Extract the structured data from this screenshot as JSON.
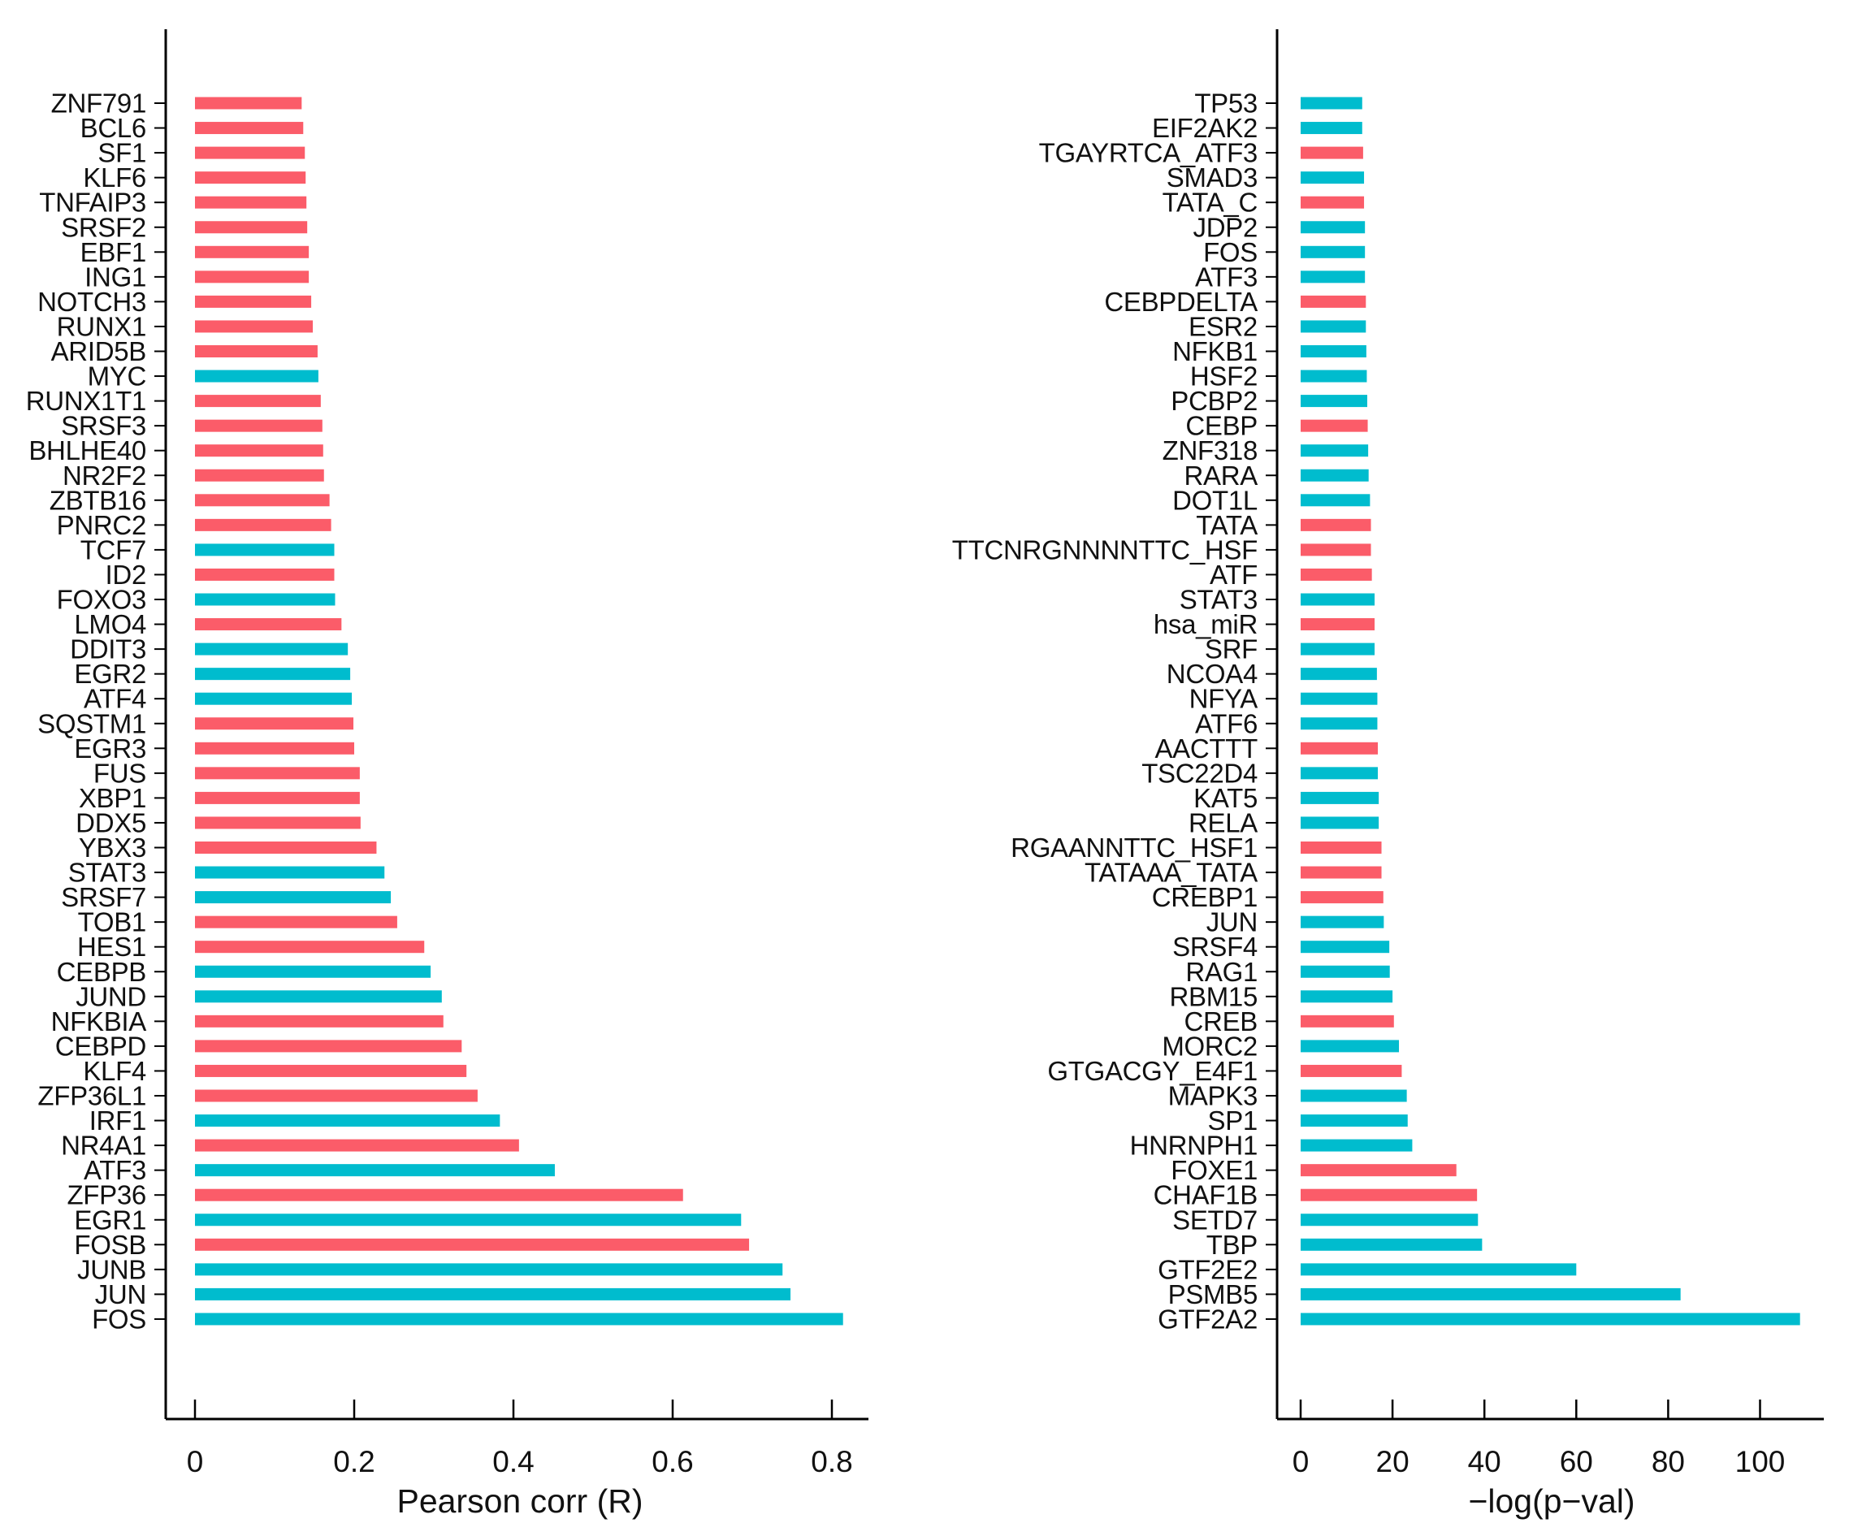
{
  "figure": {
    "background": "#ffffff",
    "bar_color_up": "#00BCCE",
    "bar_color_down": "#FB5C69",
    "axis_color": "#000000"
  },
  "chart_data": [
    {
      "type": "bar",
      "orientation": "horizontal",
      "title": "",
      "xlabel": "Pearson corr (R)",
      "ylabel": "",
      "xlim": [
        -0.04,
        0.85
      ],
      "grid": false,
      "legend_position": "none",
      "xticks": [
        0,
        0.2,
        0.4,
        0.6,
        0.8
      ],
      "xtick_labels": [
        "0",
        "0.2",
        "0.4",
        "0.6",
        "0.8"
      ],
      "categories": [
        "ZNF791",
        "BCL6",
        "SF1",
        "KLF6",
        "TNFAIP3",
        "SRSF2",
        "EBF1",
        "ING1",
        "NOTCH3",
        "RUNX1",
        "ARID5B",
        "MYC",
        "RUNX1T1",
        "SRSF3",
        "BHLHE40",
        "NR2F2",
        "ZBTB16",
        "PNRC2",
        "TCF7",
        "ID2",
        "FOXO3",
        "LMO4",
        "DDIT3",
        "EGR2",
        "ATF4",
        "SQSTM1",
        "EGR3",
        "FUS",
        "XBP1",
        "DDX5",
        "YBX3",
        "STAT3",
        "SRSF7",
        "TOB1",
        "HES1",
        "CEBPB",
        "JUND",
        "NFKBIA",
        "CEBPD",
        "KLF4",
        "ZFP36L1",
        "IRF1",
        "NR4A1",
        "ATF3",
        "ZFP36",
        "EGR1",
        "FOSB",
        "JUNB",
        "JUN",
        "FOS"
      ],
      "values": [
        0.134,
        0.136,
        0.138,
        0.139,
        0.14,
        0.141,
        0.143,
        0.143,
        0.146,
        0.148,
        0.154,
        0.155,
        0.158,
        0.16,
        0.161,
        0.162,
        0.169,
        0.171,
        0.175,
        0.175,
        0.176,
        0.184,
        0.192,
        0.195,
        0.197,
        0.199,
        0.2,
        0.207,
        0.207,
        0.208,
        0.228,
        0.238,
        0.246,
        0.254,
        0.288,
        0.296,
        0.31,
        0.312,
        0.335,
        0.341,
        0.355,
        0.383,
        0.407,
        0.452,
        0.613,
        0.686,
        0.696,
        0.738,
        0.748,
        0.814
      ],
      "bar_colors": [
        "#FB5C69",
        "#FB5C69",
        "#FB5C69",
        "#FB5C69",
        "#FB5C69",
        "#FB5C69",
        "#FB5C69",
        "#FB5C69",
        "#FB5C69",
        "#FB5C69",
        "#FB5C69",
        "#00BCCE",
        "#FB5C69",
        "#FB5C69",
        "#FB5C69",
        "#FB5C69",
        "#FB5C69",
        "#FB5C69",
        "#00BCCE",
        "#FB5C69",
        "#00BCCE",
        "#FB5C69",
        "#00BCCE",
        "#00BCCE",
        "#00BCCE",
        "#FB5C69",
        "#FB5C69",
        "#FB5C69",
        "#FB5C69",
        "#FB5C69",
        "#FB5C69",
        "#00BCCE",
        "#00BCCE",
        "#FB5C69",
        "#FB5C69",
        "#00BCCE",
        "#00BCCE",
        "#FB5C69",
        "#FB5C69",
        "#FB5C69",
        "#FB5C69",
        "#00BCCE",
        "#FB5C69",
        "#00BCCE",
        "#FB5C69",
        "#00BCCE",
        "#FB5C69",
        "#00BCCE",
        "#00BCCE",
        "#00BCCE"
      ]
    },
    {
      "type": "bar",
      "orientation": "horizontal",
      "title": "",
      "xlabel": "−log(p−val)",
      "ylabel": "",
      "xlim": [
        -5,
        114
      ],
      "grid": false,
      "legend_position": "none",
      "xticks": [
        0,
        20,
        40,
        60,
        80,
        100
      ],
      "xtick_labels": [
        "0",
        "20",
        "40",
        "60",
        "80",
        "100"
      ],
      "categories": [
        "TP53",
        "EIF2AK2",
        "TGAYRTCA_ATF3",
        "SMAD3",
        "TATA_C",
        "JDP2",
        "FOS",
        "ATF3",
        "CEBPDELTA",
        "ESR2",
        "NFKB1",
        "HSF2",
        "PCBP2",
        "CEBP",
        "ZNF318",
        "RARA",
        "DOT1L",
        "TATA",
        "TTCNRGNNNNTTC_HSF",
        "ATF",
        "STAT3",
        "hsa_miR",
        "SRF",
        "NCOA4",
        "NFYA",
        "ATF6",
        "AACTTT",
        "TSC22D4",
        "KAT5",
        "RELA",
        "RGAANNTTC_HSF1",
        "TATAAA_TATA",
        "CREBP1",
        "JUN",
        "SRSF4",
        "RAG1",
        "RBM15",
        "CREB",
        "MORC2",
        "GTGACGY_E4F1",
        "MAPK3",
        "SP1",
        "HNRNPH1",
        "FOXE1",
        "CHAF1B",
        "SETD7",
        "TBP",
        "GTF2E2",
        "PSMB5",
        "GTF2A2"
      ],
      "values": [
        13.4,
        13.4,
        13.6,
        13.8,
        13.8,
        14.0,
        14.0,
        14.0,
        14.2,
        14.2,
        14.3,
        14.4,
        14.5,
        14.6,
        14.7,
        14.8,
        15.1,
        15.3,
        15.3,
        15.5,
        16.1,
        16.1,
        16.1,
        16.6,
        16.7,
        16.7,
        16.8,
        16.8,
        17.0,
        17.0,
        17.6,
        17.6,
        18.0,
        18.1,
        19.3,
        19.4,
        20.0,
        20.3,
        21.4,
        22.0,
        23.1,
        23.3,
        24.3,
        33.9,
        38.4,
        38.6,
        39.5,
        60.0,
        82.7,
        108.7
      ],
      "bar_colors": [
        "#00BCCE",
        "#00BCCE",
        "#FB5C69",
        "#00BCCE",
        "#FB5C69",
        "#00BCCE",
        "#00BCCE",
        "#00BCCE",
        "#FB5C69",
        "#00BCCE",
        "#00BCCE",
        "#00BCCE",
        "#00BCCE",
        "#FB5C69",
        "#00BCCE",
        "#00BCCE",
        "#00BCCE",
        "#FB5C69",
        "#FB5C69",
        "#FB5C69",
        "#00BCCE",
        "#FB5C69",
        "#00BCCE",
        "#00BCCE",
        "#00BCCE",
        "#00BCCE",
        "#FB5C69",
        "#00BCCE",
        "#00BCCE",
        "#00BCCE",
        "#FB5C69",
        "#FB5C69",
        "#FB5C69",
        "#00BCCE",
        "#00BCCE",
        "#00BCCE",
        "#00BCCE",
        "#FB5C69",
        "#00BCCE",
        "#FB5C69",
        "#00BCCE",
        "#00BCCE",
        "#00BCCE",
        "#FB5C69",
        "#FB5C69",
        "#00BCCE",
        "#00BCCE",
        "#00BCCE",
        "#00BCCE",
        "#00BCCE"
      ]
    }
  ]
}
